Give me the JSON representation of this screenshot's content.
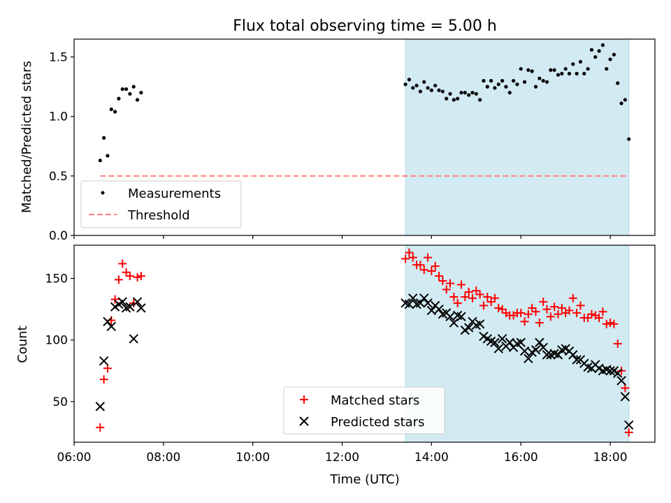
{
  "title": "Flux total observing time = 5.00 h",
  "chart_data": [
    {
      "type": "scatter",
      "ylabel": "Matched/Predicted stars",
      "xlabel": "",
      "xlim": [
        "06:00",
        "19:00"
      ],
      "ylim": [
        0,
        1.65
      ],
      "yticks": [
        "0.0",
        "0.5",
        "1.0",
        "1.5"
      ],
      "shaded_interval": [
        "13:25",
        "18:25"
      ],
      "shade_color": "#add8e6",
      "legend_position": "lower-left",
      "series": [
        {
          "name": "Measurements",
          "marker": "dot",
          "color": "#000000",
          "points": [
            [
              "06:35",
              0.63
            ],
            [
              "06:40",
              0.82
            ],
            [
              "06:45",
              0.67
            ],
            [
              "06:50",
              1.06
            ],
            [
              "06:55",
              1.04
            ],
            [
              "07:00",
              1.15
            ],
            [
              "07:05",
              1.23
            ],
            [
              "07:10",
              1.23
            ],
            [
              "07:15",
              1.19
            ],
            [
              "07:20",
              1.25
            ],
            [
              "07:25",
              1.14
            ],
            [
              "07:30",
              1.2
            ],
            [
              "13:25",
              1.27
            ],
            [
              "13:30",
              1.31
            ],
            [
              "13:35",
              1.24
            ],
            [
              "13:40",
              1.26
            ],
            [
              "13:45",
              1.21
            ],
            [
              "13:50",
              1.29
            ],
            [
              "13:55",
              1.24
            ],
            [
              "14:00",
              1.22
            ],
            [
              "14:05",
              1.26
            ],
            [
              "14:10",
              1.22
            ],
            [
              "14:15",
              1.21
            ],
            [
              "14:20",
              1.15
            ],
            [
              "14:25",
              1.19
            ],
            [
              "14:30",
              1.14
            ],
            [
              "14:35",
              1.15
            ],
            [
              "14:40",
              1.2
            ],
            [
              "14:45",
              1.2
            ],
            [
              "14:50",
              1.18
            ],
            [
              "14:55",
              1.2
            ],
            [
              "15:00",
              1.19
            ],
            [
              "15:05",
              1.14
            ],
            [
              "15:10",
              1.3
            ],
            [
              "15:15",
              1.25
            ],
            [
              "15:20",
              1.3
            ],
            [
              "15:25",
              1.24
            ],
            [
              "15:30",
              1.27
            ],
            [
              "15:35",
              1.3
            ],
            [
              "15:40",
              1.25
            ],
            [
              "15:45",
              1.2
            ],
            [
              "15:50",
              1.3
            ],
            [
              "15:55",
              1.27
            ],
            [
              "16:00",
              1.4
            ],
            [
              "16:05",
              1.29
            ],
            [
              "16:10",
              1.39
            ],
            [
              "16:15",
              1.38
            ],
            [
              "16:20",
              1.25
            ],
            [
              "16:25",
              1.32
            ],
            [
              "16:30",
              1.3
            ],
            [
              "16:35",
              1.29
            ],
            [
              "16:40",
              1.39
            ],
            [
              "16:45",
              1.39
            ],
            [
              "16:50",
              1.35
            ],
            [
              "16:55",
              1.36
            ],
            [
              "17:00",
              1.4
            ],
            [
              "17:05",
              1.36
            ],
            [
              "17:10",
              1.44
            ],
            [
              "17:15",
              1.36
            ],
            [
              "17:20",
              1.46
            ],
            [
              "17:25",
              1.36
            ],
            [
              "17:30",
              1.4
            ],
            [
              "17:35",
              1.56
            ],
            [
              "17:40",
              1.5
            ],
            [
              "17:45",
              1.55
            ],
            [
              "17:50",
              1.6
            ],
            [
              "17:55",
              1.4
            ],
            [
              "18:00",
              1.48
            ],
            [
              "18:05",
              1.52
            ],
            [
              "18:10",
              1.28
            ],
            [
              "18:15",
              1.11
            ],
            [
              "18:20",
              1.14
            ],
            [
              "18:25",
              0.81
            ]
          ]
        },
        {
          "name": "Threshold",
          "marker": "dashed-line",
          "color": "#ff7f7f",
          "points": [
            [
              "06:35",
              0.5
            ],
            [
              "18:25",
              0.5
            ]
          ]
        }
      ]
    },
    {
      "type": "scatter",
      "ylabel": "Count",
      "xlabel": "Time (UTC)",
      "xlim": [
        "06:00",
        "19:00"
      ],
      "ylim": [
        17,
        177
      ],
      "yticks": [
        "50",
        "100",
        "150"
      ],
      "xticks": [
        "06:00",
        "08:00",
        "10:00",
        "12:00",
        "14:00",
        "16:00",
        "18:00"
      ],
      "shaded_interval": [
        "13:25",
        "18:25"
      ],
      "shade_color": "#add8e6",
      "legend_position": "lower-center",
      "series": [
        {
          "name": "Matched stars",
          "marker": "plus",
          "color": "#ff0000",
          "points": [
            [
              "06:35",
              29
            ],
            [
              "06:40",
              68
            ],
            [
              "06:45",
              77
            ],
            [
              "06:50",
              116
            ],
            [
              "06:55",
              133
            ],
            [
              "07:00",
              149
            ],
            [
              "07:05",
              162
            ],
            [
              "07:10",
              155
            ],
            [
              "07:15",
              152
            ],
            [
              "07:20",
              130
            ],
            [
              "07:25",
              151
            ],
            [
              "07:30",
              152
            ],
            [
              "13:25",
              166
            ],
            [
              "13:30",
              171
            ],
            [
              "13:35",
              167
            ],
            [
              "13:40",
              161
            ],
            [
              "13:45",
              161
            ],
            [
              "13:50",
              157
            ],
            [
              "13:55",
              167
            ],
            [
              "14:00",
              156
            ],
            [
              "14:05",
              160
            ],
            [
              "14:10",
              152
            ],
            [
              "14:15",
              148
            ],
            [
              "14:20",
              141
            ],
            [
              "14:25",
              146
            ],
            [
              "14:30",
              135
            ],
            [
              "14:35",
              130
            ],
            [
              "14:40",
              145
            ],
            [
              "14:45",
              135
            ],
            [
              "14:50",
              139
            ],
            [
              "14:55",
              134
            ],
            [
              "15:00",
              140
            ],
            [
              "15:05",
              137
            ],
            [
              "15:10",
              128
            ],
            [
              "15:15",
              135
            ],
            [
              "15:20",
              131
            ],
            [
              "15:25",
              134
            ],
            [
              "15:30",
              126
            ],
            [
              "15:35",
              125
            ],
            [
              "15:40",
              122
            ],
            [
              "15:45",
              120
            ],
            [
              "15:50",
              120
            ],
            [
              "15:55",
              122
            ],
            [
              "16:00",
              122
            ],
            [
              "16:05",
              115
            ],
            [
              "16:10",
              121
            ],
            [
              "16:15",
              126
            ],
            [
              "16:20",
              123
            ],
            [
              "16:25",
              114
            ],
            [
              "16:30",
              131
            ],
            [
              "16:35",
              125
            ],
            [
              "16:40",
              119
            ],
            [
              "16:45",
              127
            ],
            [
              "16:50",
              121
            ],
            [
              "16:55",
              126
            ],
            [
              "17:00",
              122
            ],
            [
              "17:05",
              124
            ],
            [
              "17:10",
              134
            ],
            [
              "17:15",
              122
            ],
            [
              "17:20",
              128
            ],
            [
              "17:25",
              118
            ],
            [
              "17:30",
              118
            ],
            [
              "17:35",
              121
            ],
            [
              "17:40",
              120
            ],
            [
              "17:45",
              118
            ],
            [
              "17:50",
              123
            ],
            [
              "17:55",
              113
            ],
            [
              "18:00",
              114
            ],
            [
              "18:05",
              113
            ],
            [
              "18:10",
              97
            ],
            [
              "18:15",
              75
            ],
            [
              "18:20",
              61
            ],
            [
              "18:25",
              25
            ]
          ]
        },
        {
          "name": "Predicted stars",
          "marker": "x",
          "color": "#000000",
          "points": [
            [
              "06:35",
              46
            ],
            [
              "06:40",
              83
            ],
            [
              "06:45",
              115
            ],
            [
              "06:50",
              111
            ],
            [
              "06:55",
              127
            ],
            [
              "07:00",
              129
            ],
            [
              "07:05",
              131
            ],
            [
              "07:10",
              126
            ],
            [
              "07:15",
              127
            ],
            [
              "07:20",
              101
            ],
            [
              "07:25",
              131
            ],
            [
              "07:30",
              126
            ],
            [
              "13:25",
              130
            ],
            [
              "13:30",
              129
            ],
            [
              "13:35",
              134
            ],
            [
              "13:40",
              129
            ],
            [
              "13:45",
              130
            ],
            [
              "13:50",
              134
            ],
            [
              "13:55",
              130
            ],
            [
              "14:00",
              124
            ],
            [
              "14:05",
              128
            ],
            [
              "14:10",
              125
            ],
            [
              "14:15",
              121
            ],
            [
              "14:20",
              122
            ],
            [
              "14:25",
              119
            ],
            [
              "14:30",
              114
            ],
            [
              "14:35",
              120
            ],
            [
              "14:40",
              119
            ],
            [
              "14:45",
              108
            ],
            [
              "14:50",
              110
            ],
            [
              "14:55",
              115
            ],
            [
              "15:00",
              112
            ],
            [
              "15:05",
              113
            ],
            [
              "15:10",
              103
            ],
            [
              "15:15",
              101
            ],
            [
              "15:20",
              99
            ],
            [
              "15:25",
              98
            ],
            [
              "15:30",
              93
            ],
            [
              "15:35",
              101
            ],
            [
              "15:40",
              95
            ],
            [
              "15:45",
              98
            ],
            [
              "15:50",
              94
            ],
            [
              "15:55",
              97
            ],
            [
              "16:00",
              98
            ],
            [
              "16:05",
              91
            ],
            [
              "16:10",
              85
            ],
            [
              "16:15",
              90
            ],
            [
              "16:20",
              92
            ],
            [
              "16:25",
              98
            ],
            [
              "16:30",
              94
            ],
            [
              "16:35",
              88
            ],
            [
              "16:40",
              88
            ],
            [
              "16:45",
              89
            ],
            [
              "16:50",
              88
            ],
            [
              "16:55",
              92
            ],
            [
              "17:00",
              93
            ],
            [
              "17:05",
              91
            ],
            [
              "17:10",
              88
            ],
            [
              "17:15",
              84
            ],
            [
              "17:20",
              84
            ],
            [
              "17:25",
              81
            ],
            [
              "17:30",
              78
            ],
            [
              "17:35",
              77
            ],
            [
              "17:40",
              80
            ],
            [
              "17:45",
              77
            ],
            [
              "17:50",
              75
            ],
            [
              "17:55",
              76
            ],
            [
              "18:00",
              75
            ],
            [
              "18:05",
              75
            ],
            [
              "18:10",
              73
            ],
            [
              "18:15",
              67
            ],
            [
              "18:20",
              54
            ],
            [
              "18:25",
              31
            ]
          ]
        }
      ]
    }
  ]
}
